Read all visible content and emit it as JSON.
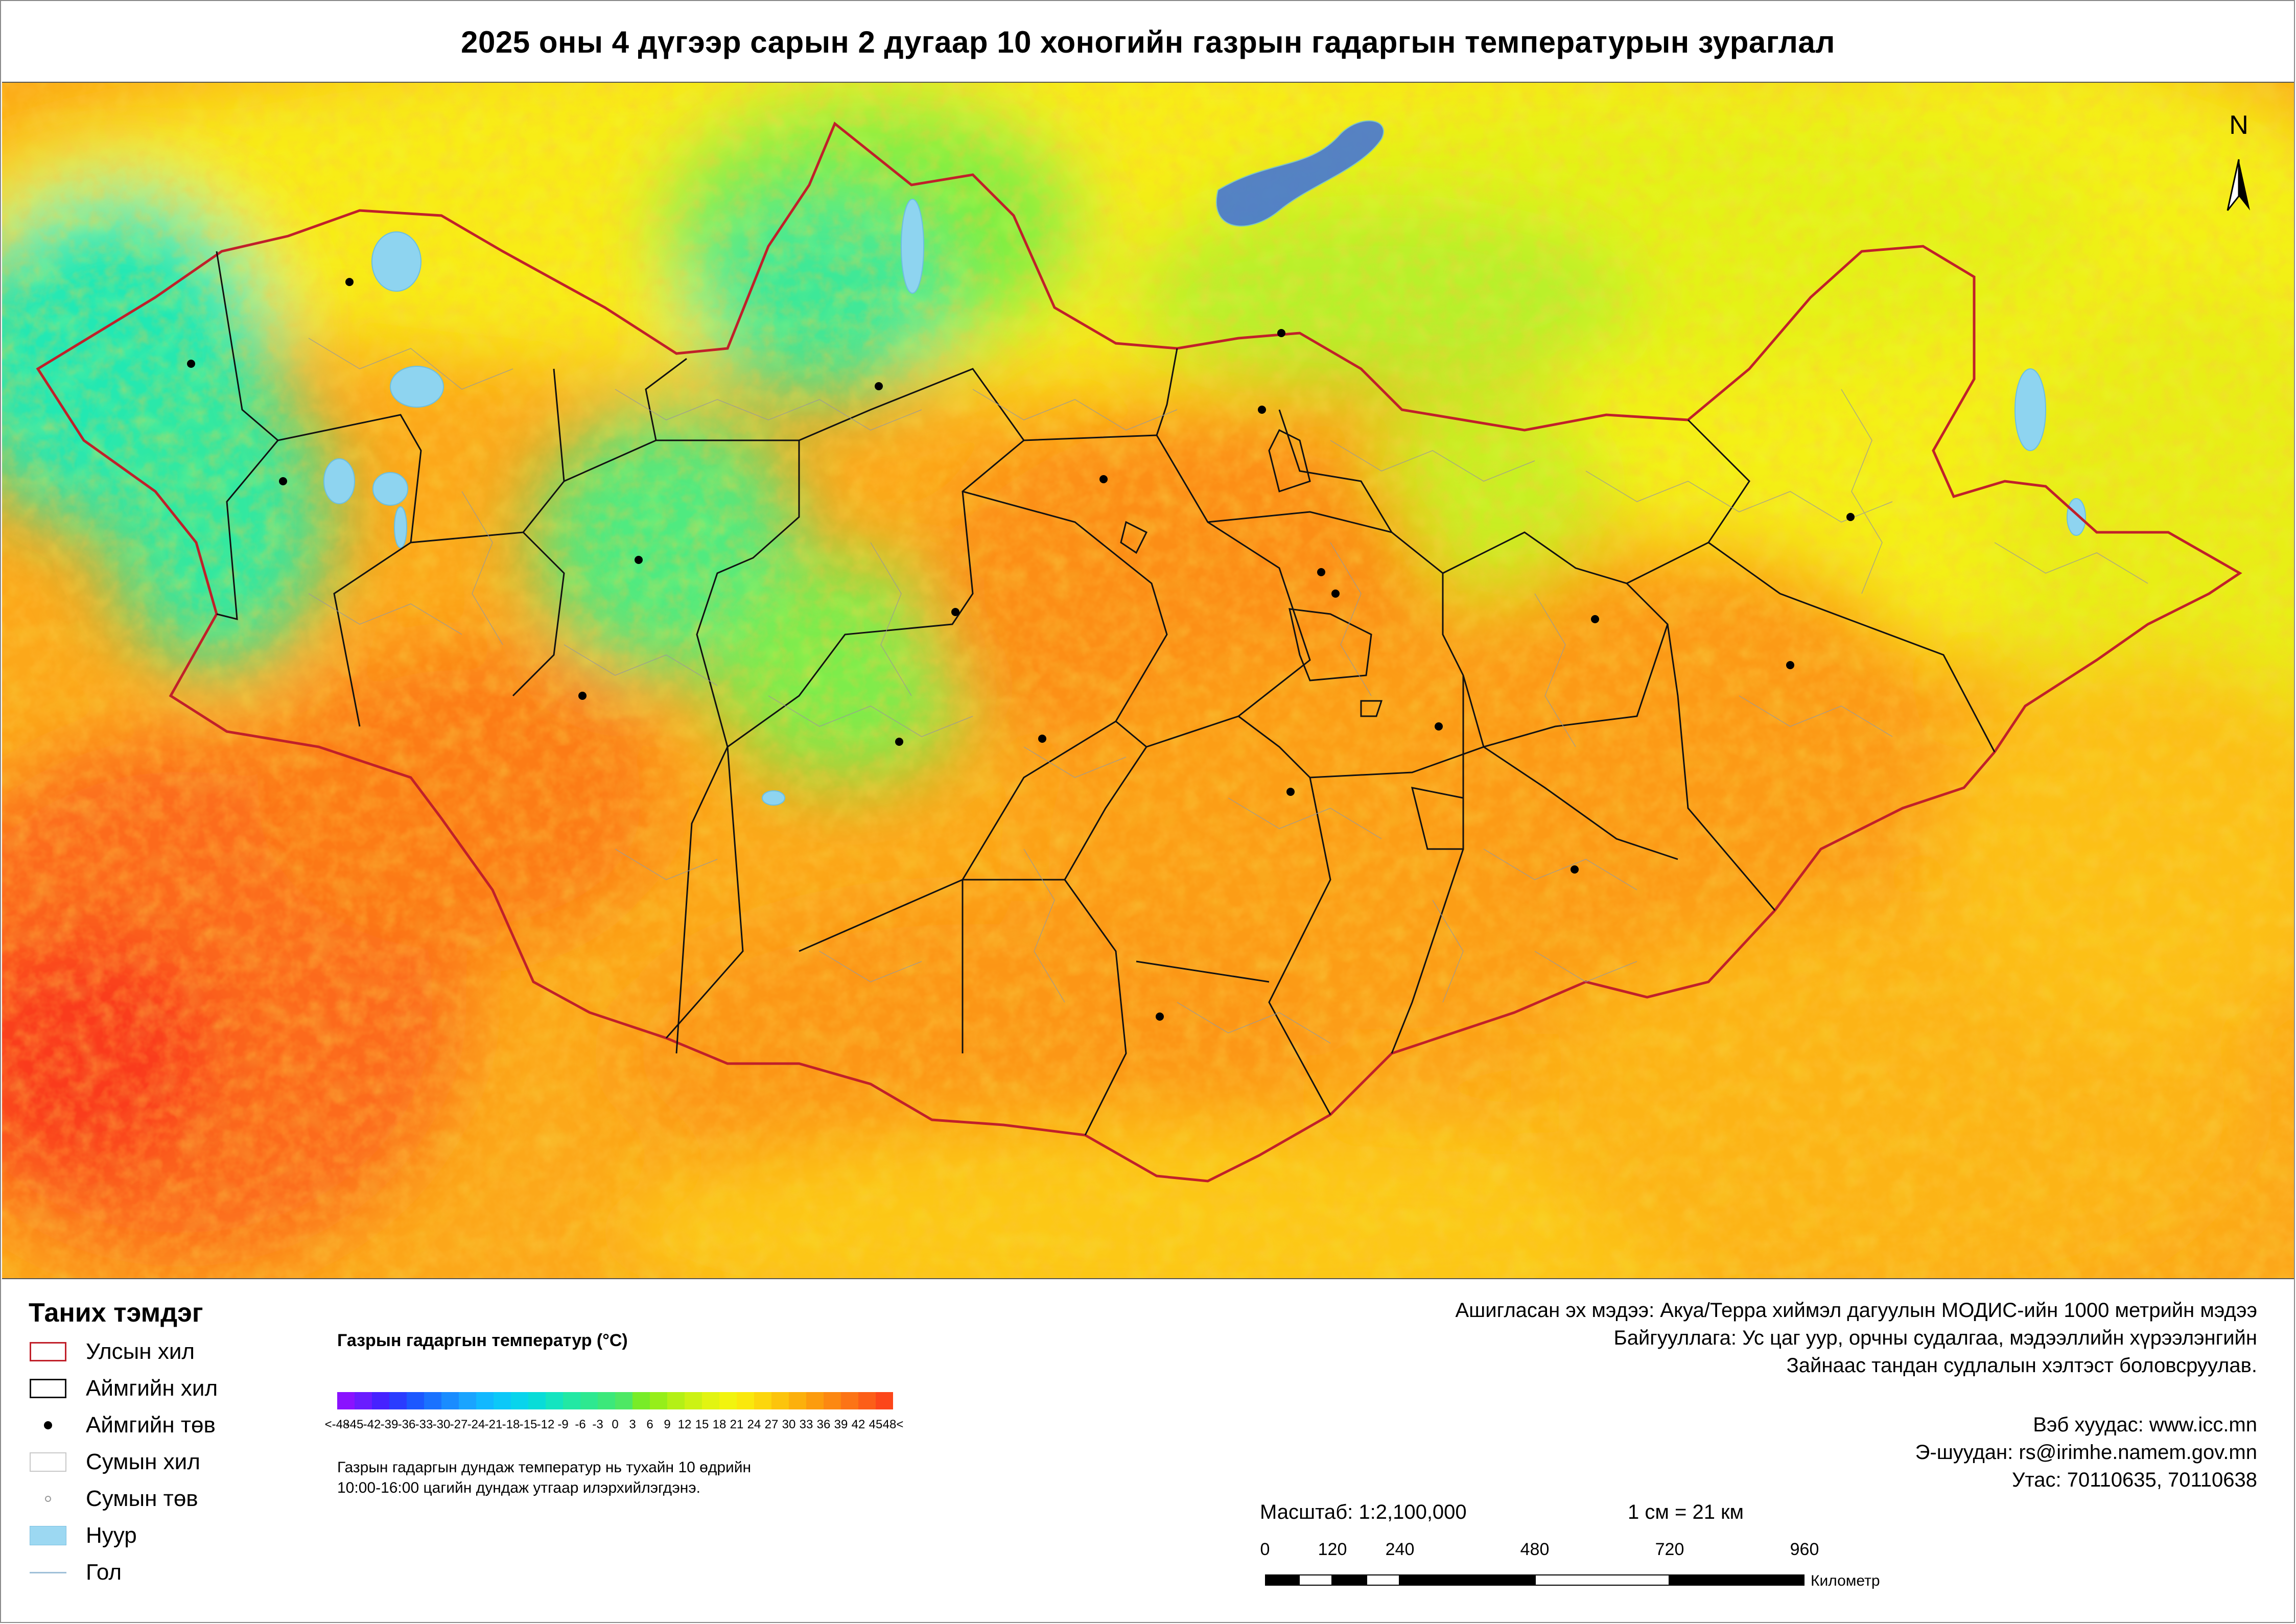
{
  "title": "2025 оны 4 дүгээр сарын 2 дугаар 10 хоногийн газрын гадаргын температурын зураглал",
  "north_arrow": {
    "label": "N"
  },
  "legend": {
    "title": "Таних тэмдэг",
    "items": [
      {
        "label": "Улсын хил",
        "icon": "country-border-symbol"
      },
      {
        "label": "Аймгийн хил",
        "icon": "aimag-border-symbol"
      },
      {
        "label": "Аймгийн төв",
        "icon": "aimag-center-symbol"
      },
      {
        "label": "Сумын хил",
        "icon": "soum-border-symbol"
      },
      {
        "label": "Сумын төв",
        "icon": "soum-center-symbol"
      },
      {
        "label": "Нуур",
        "icon": "lake-symbol"
      },
      {
        "label": "Гол",
        "icon": "river-symbol"
      }
    ]
  },
  "colorbar": {
    "title": "Газрын гадаргын температур (°C)",
    "labels": [
      "<-48",
      "-45",
      "-42",
      "-39",
      "-36",
      "-33",
      "-30",
      "-27",
      "-24",
      "-21",
      "-18",
      "-15",
      "-12",
      "-9",
      "-6",
      "-3",
      "0",
      "3",
      "6",
      "9",
      "12",
      "15",
      "18",
      "21",
      "24",
      "27",
      "30",
      "33",
      "36",
      "39",
      "42",
      "45",
      "48<"
    ],
    "colors": [
      "#8a12ff",
      "#6a1cff",
      "#4622ff",
      "#2a3cff",
      "#1c58ff",
      "#1a72ff",
      "#1a8cff",
      "#1aa4ff",
      "#12b8ff",
      "#0cc8f8",
      "#08d4ec",
      "#08dcd8",
      "#14e4c0",
      "#22e8a4",
      "#2ee890",
      "#3ce87a",
      "#4ee864",
      "#78ec28",
      "#96ee1a",
      "#b4f016",
      "#ccf214",
      "#e2f412",
      "#f2f40e",
      "#fae80c",
      "#fcd60c",
      "#fcc40c",
      "#fcb00c",
      "#fc9c0e",
      "#fc8812",
      "#fc7416",
      "#fc5e18",
      "#fc461a"
    ],
    "note_lines": [
      "Газрын гадаргын дундаж температур нь тухайн 10 өдрийн",
      "10:00-16:00 цагийн дундаж утгаар илэрхийлэгдэнэ."
    ]
  },
  "info": {
    "source_lines": [
      "Ашигласан эх мэдээ: Акуа/Терра хиймэл дагуулын МОДИС-ийн 1000 метрийн мэдээ",
      "Байгууллага: Ус цаг уур, орчны судалгаа, мэдээллийн хүрээлэнгийн",
      "Зайнаас тандан судлалын хэлтэст боловсруулав."
    ],
    "contact_lines": [
      "Вэб хуудас: www.icc.mn",
      "Э-шуудан: rs@irimhe.namem.gov.mn",
      "Утас: 70110635, 70110638"
    ]
  },
  "scale": {
    "ratio_text": "Масштаб: 1:2,100,000",
    "equivalence_text": "1 см = 21 км",
    "ticks": [
      "0",
      "120",
      "240",
      "480",
      "720",
      "960"
    ],
    "unit": "Километр"
  },
  "map": {
    "background_colors": {
      "hot": "#fc5a1c",
      "warm": "#fc9e18",
      "mild": "#fcd414",
      "cool": "#d8f018",
      "cold": "#22e8b0",
      "lake": "#8ed4f0"
    },
    "country_border_color": "#c0202a",
    "aimag_border_color": "#111111",
    "soum_border_color": "#9a9a9a"
  }
}
